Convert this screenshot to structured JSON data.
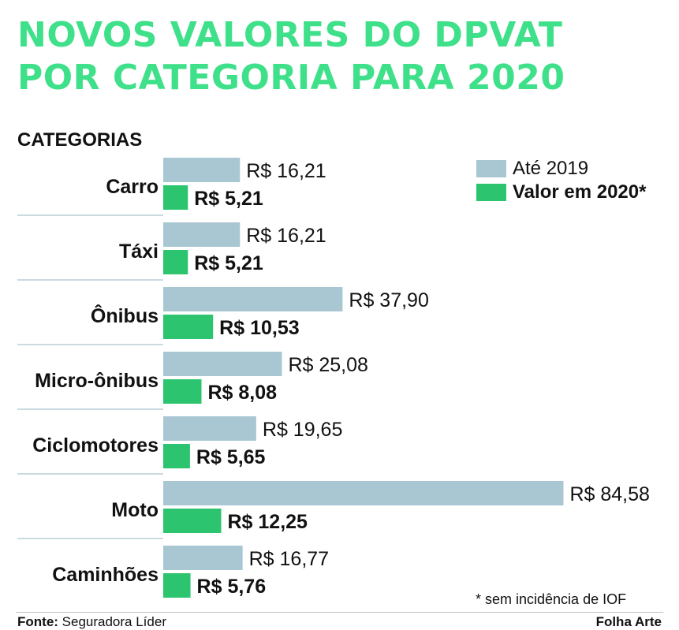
{
  "chart_data": {
    "type": "bar",
    "orientation": "horizontal",
    "title_lines": [
      "NOVOS VALORES DO DPVAT",
      "POR CATEGORIA PARA 2020"
    ],
    "category_heading": "CATEGORIAS",
    "categories": [
      "Carro",
      "Táxi",
      "Ônibus",
      "Micro-ônibus",
      "Ciclomotores",
      "Moto",
      "Caminhões"
    ],
    "series": [
      {
        "name": "Até 2019",
        "color": "#a9c7d3",
        "values": [
          16.21,
          16.21,
          37.9,
          25.08,
          19.65,
          84.58,
          16.77
        ],
        "labels": [
          "R$ 16,21",
          "R$ 16,21",
          "R$ 37,90",
          "R$ 25,08",
          "R$ 19,65",
          "R$ 84,58",
          "R$ 16,77"
        ]
      },
      {
        "name": "Valor em 2020*",
        "color": "#2cc46e",
        "values": [
          5.21,
          5.21,
          10.53,
          8.08,
          5.65,
          12.25,
          5.76
        ],
        "labels": [
          "R$ 5,21",
          "R$ 5,21",
          "R$ 10,53",
          "R$ 8,08",
          "R$ 5,65",
          "R$ 12,25",
          "R$ 5,76"
        ]
      }
    ],
    "legend_position": "top-right",
    "note": "* sem incidência de IOF",
    "grid": false
  },
  "footer": {
    "source_label": "Fonte:",
    "source_value": " Seguradora Líder",
    "credit": "Folha Arte"
  }
}
